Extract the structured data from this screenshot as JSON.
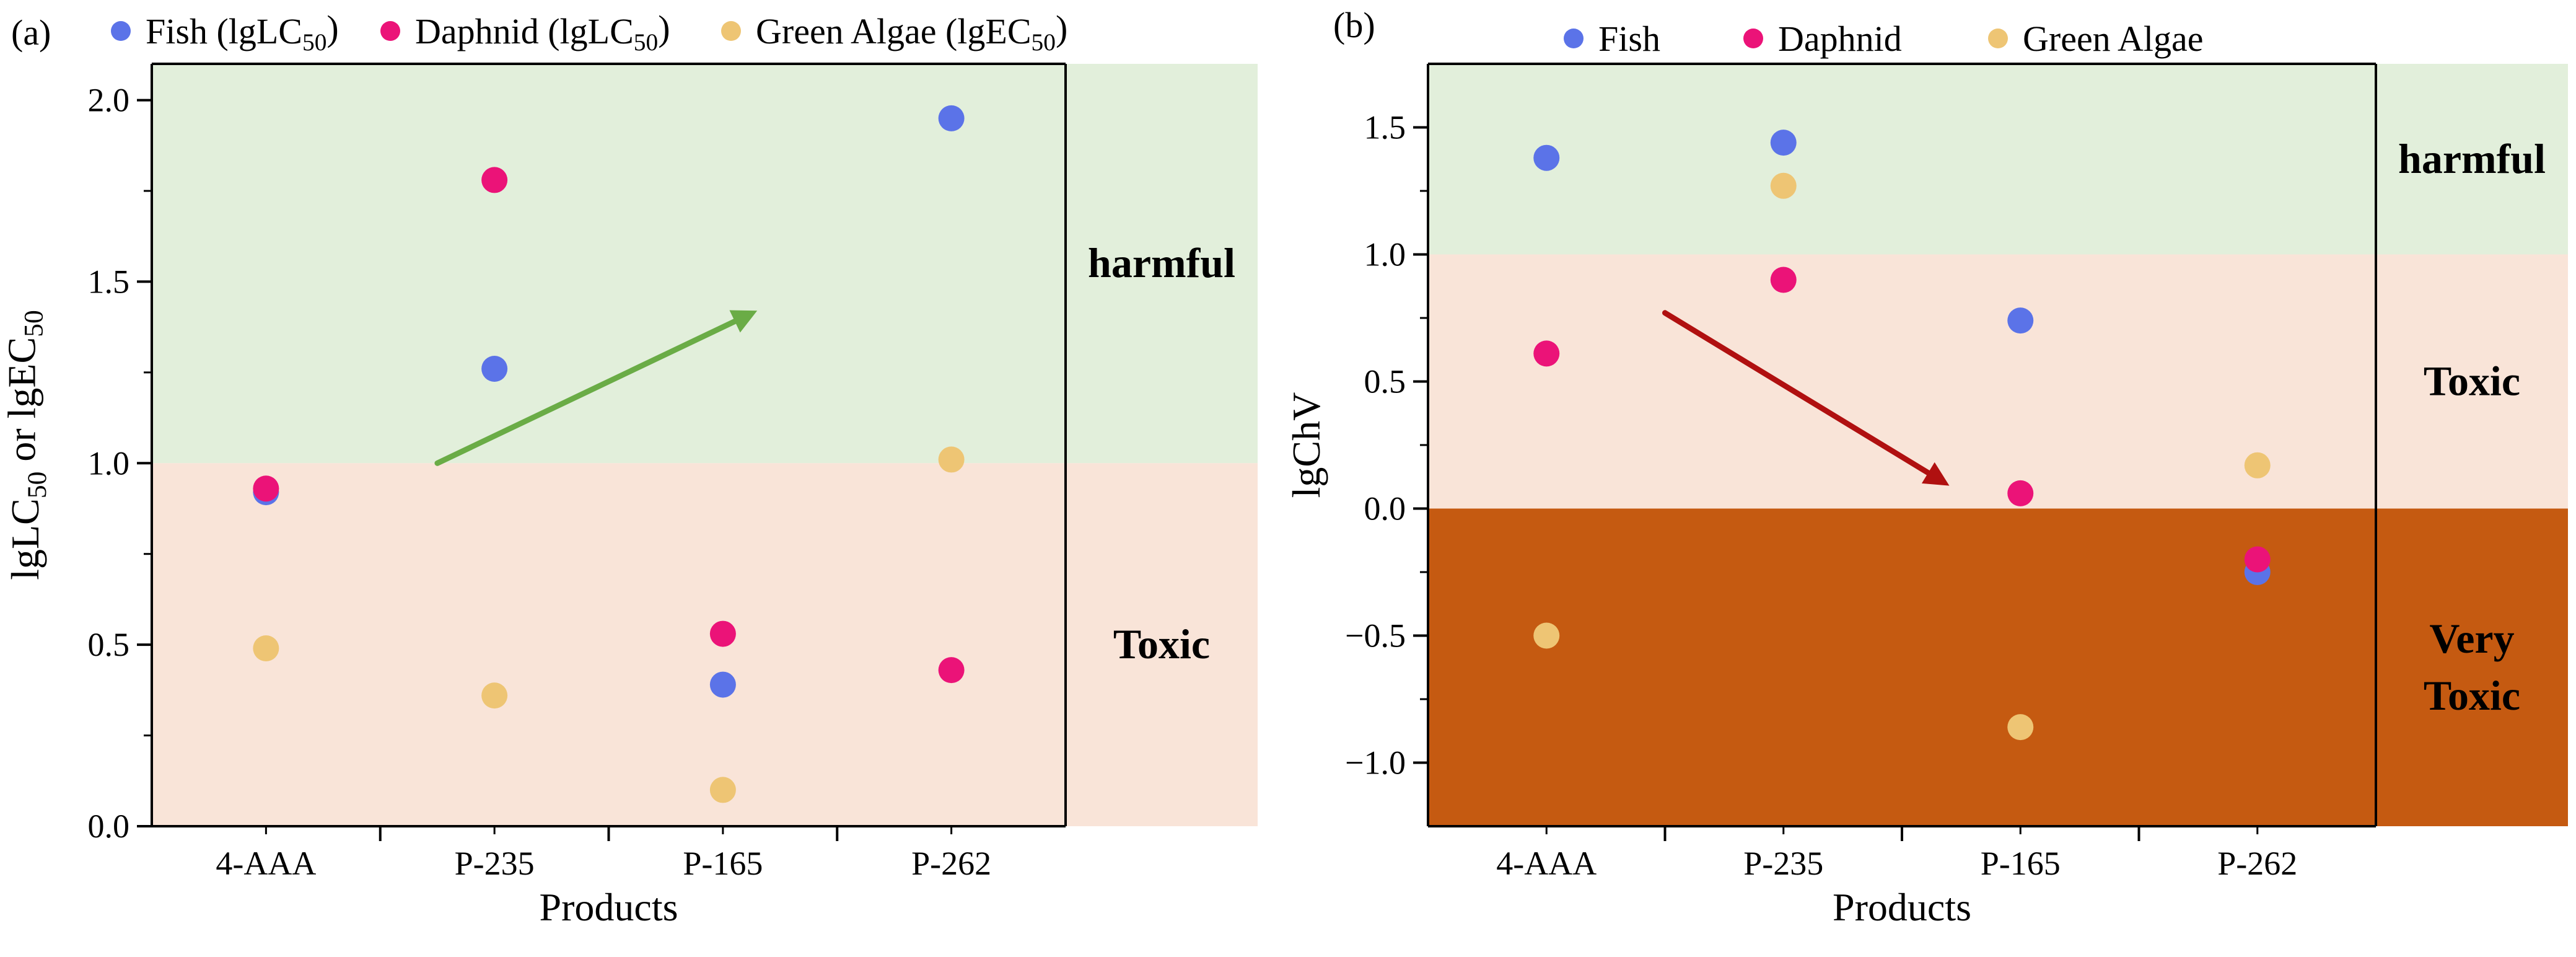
{
  "chart_data": [
    {
      "panel_label": "(a)",
      "type": "scatter",
      "categories": [
        "4-AAA",
        "P-235",
        "P-165",
        "P-262"
      ],
      "xlabel": "Products",
      "ylabel": {
        "prefix": "lgLC",
        "sub1": "50",
        "mid": " or lgEC",
        "sub2": "50"
      },
      "ylim": [
        0,
        2.1
      ],
      "yticks": [
        0.0,
        0.5,
        1.0,
        1.5,
        2.0
      ],
      "ytick_labels": [
        "0.0",
        "0.5",
        "1.0",
        "1.5",
        "2.0"
      ],
      "legend": [
        {
          "name": "Fish (lgLC",
          "sub": "50",
          "close": ")",
          "color": "#5b73e8"
        },
        {
          "name": "Daphnid (lgLC",
          "sub": "50",
          "close": ")",
          "color": "#eb1378"
        },
        {
          "name": "Green Algae (lgEC",
          "sub": "50",
          "close": ")",
          "color": "#eec574"
        }
      ],
      "series": [
        {
          "name": "Fish",
          "color": "#5b73e8",
          "values": [
            0.92,
            1.26,
            0.39,
            1.95
          ]
        },
        {
          "name": "Green Algae",
          "color": "#eec574",
          "values": [
            0.49,
            0.36,
            0.1,
            1.01
          ]
        },
        {
          "name": "Daphnid",
          "color": "#eb1378",
          "values": [
            0.93,
            1.78,
            0.53,
            0.43
          ]
        }
      ],
      "zones": [
        {
          "label": "harmful",
          "from": 1.0,
          "to": 2.1,
          "color": "#e2efdb"
        },
        {
          "label": "Toxic",
          "from": 0.0,
          "to": 1.0,
          "color": "#f9e4d8"
        }
      ],
      "arrow": {
        "from": [
          1.25,
          1.0
        ],
        "to": [
          2.65,
          1.42
        ],
        "color": "#6aac46"
      }
    },
    {
      "panel_label": "(b)",
      "type": "scatter",
      "categories": [
        "4-AAA",
        "P-235",
        "P-165",
        "P-262"
      ],
      "xlabel": "Products",
      "ylabel": {
        "prefix": "lgChV"
      },
      "ylim": [
        -1.25,
        1.75
      ],
      "yticks": [
        -1.0,
        -0.5,
        0.0,
        0.5,
        1.0,
        1.5
      ],
      "ytick_labels": [
        "−1.0",
        "−0.5",
        "0.0",
        "0.5",
        "1.0",
        "1.5"
      ],
      "legend": [
        {
          "name": "Fish",
          "color": "#5b73e8"
        },
        {
          "name": "Daphnid",
          "color": "#eb1378"
        },
        {
          "name": "Green Algae",
          "color": "#eec574"
        }
      ],
      "series": [
        {
          "name": "Fish",
          "color": "#5b73e8",
          "values": [
            1.38,
            1.44,
            0.74,
            -0.25
          ]
        },
        {
          "name": "Green Algae",
          "color": "#eec574",
          "values": [
            -0.5,
            1.27,
            -0.86,
            0.17
          ]
        },
        {
          "name": "Daphnid",
          "color": "#eb1378",
          "values": [
            0.61,
            0.9,
            0.06,
            -0.2
          ]
        }
      ],
      "zones": [
        {
          "label": "harmful",
          "from": 1.0,
          "to": 1.75,
          "color": "#e2efdb"
        },
        {
          "label": "Toxic",
          "from": 0.0,
          "to": 1.0,
          "color": "#f9e4d8"
        },
        {
          "label": "Very Toxic",
          "from": -1.25,
          "to": 0.0,
          "color": "#c55a11"
        }
      ],
      "arrow": {
        "from": [
          1.0,
          0.77
        ],
        "to": [
          2.2,
          0.09
        ],
        "color": "#b01010"
      }
    }
  ]
}
